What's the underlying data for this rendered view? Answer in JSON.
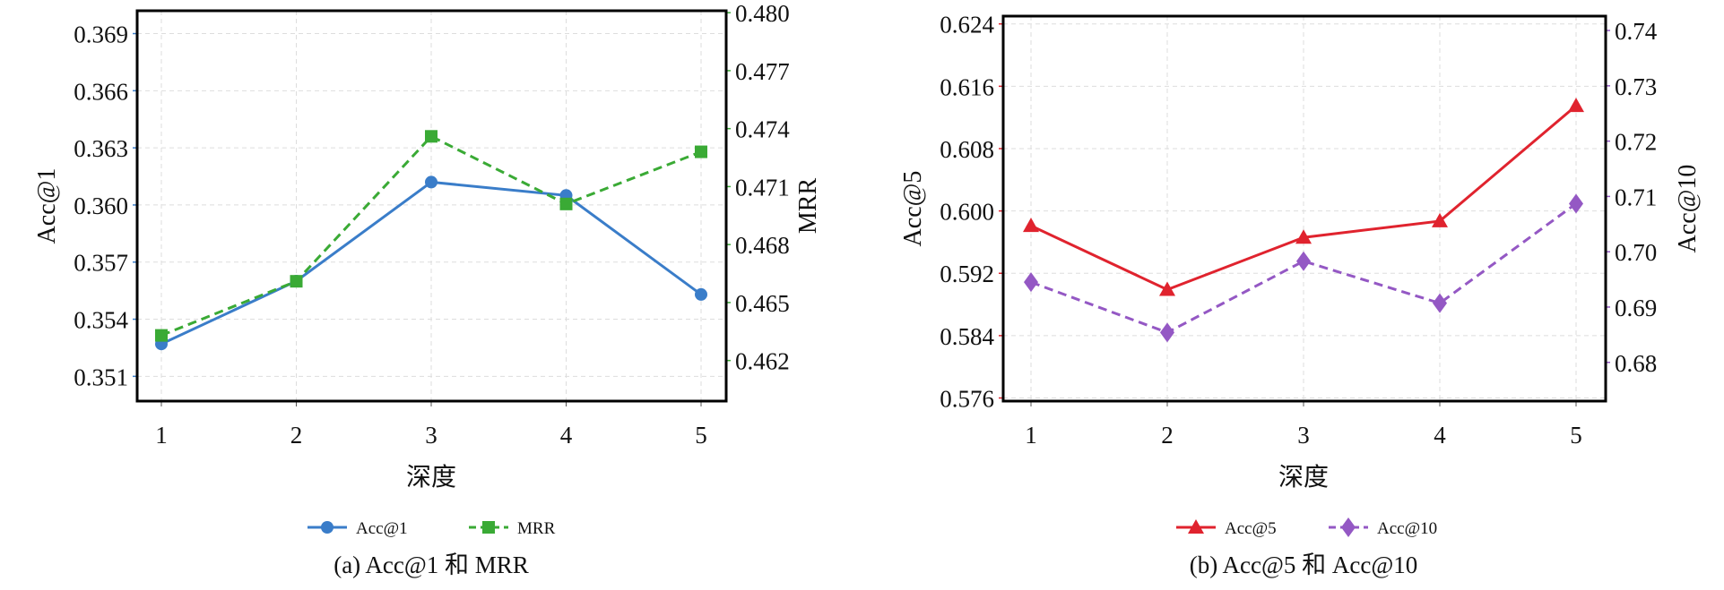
{
  "chart_data": [
    {
      "type": "line",
      "title": "(a) Acc@1 和 MRR",
      "xlabel": "深度",
      "ylabel": "Acc@1",
      "y2label": "MRR",
      "x": [
        1,
        2,
        3,
        4,
        5
      ],
      "x_ticks": [
        "1",
        "2",
        "3",
        "4",
        "5"
      ],
      "y_ticks": [
        "0.351",
        "0.354",
        "0.357",
        "0.360",
        "0.363",
        "0.366",
        "0.369"
      ],
      "y2_ticks": [
        "0.462",
        "0.465",
        "0.468",
        "0.471",
        "0.474",
        "0.477",
        "0.480"
      ],
      "ylim": [
        0.3497,
        0.3702
      ],
      "y2lim": [
        0.4599,
        0.4801
      ],
      "grid": true,
      "legend_position": "bottom",
      "series": [
        {
          "name": "Acc@1",
          "axis": "left",
          "color": "#3a7dc9",
          "marker": "circle",
          "dash": false,
          "values": [
            0.3527,
            0.356,
            0.3612,
            0.3605,
            0.3553
          ]
        },
        {
          "name": "MRR",
          "axis": "right",
          "color": "#3aaa35",
          "marker": "square",
          "dash": true,
          "values": [
            0.4633,
            0.4661,
            0.4736,
            0.4701,
            0.4728
          ]
        }
      ]
    },
    {
      "type": "line",
      "title": "(b) Acc@5 和 Acc@10",
      "xlabel": "深度",
      "ylabel": "Acc@5",
      "y2label": "Acc@10",
      "x": [
        1,
        2,
        3,
        4,
        5
      ],
      "x_ticks": [
        "1",
        "2",
        "3",
        "4",
        "5"
      ],
      "y_ticks": [
        "0.576",
        "0.584",
        "0.592",
        "0.600",
        "0.608",
        "0.616",
        "0.624"
      ],
      "y2_ticks": [
        "0.68",
        "0.69",
        "0.70",
        "0.71",
        "0.72",
        "0.73",
        "0.74"
      ],
      "ylim": [
        0.5756,
        0.625
      ],
      "y2lim": [
        0.673,
        0.7426
      ],
      "grid": true,
      "legend_position": "bottom",
      "series": [
        {
          "name": "Acc@5",
          "axis": "left",
          "color": "#e0232e",
          "marker": "triangle",
          "dash": false,
          "values": [
            0.5981,
            0.5899,
            0.5966,
            0.5987,
            0.6135
          ]
        },
        {
          "name": "Acc@10",
          "axis": "right",
          "color": "#9458c4",
          "marker": "diamond",
          "dash": true,
          "values": [
            0.6945,
            0.6854,
            0.6983,
            0.6907,
            0.7087
          ]
        }
      ]
    }
  ]
}
